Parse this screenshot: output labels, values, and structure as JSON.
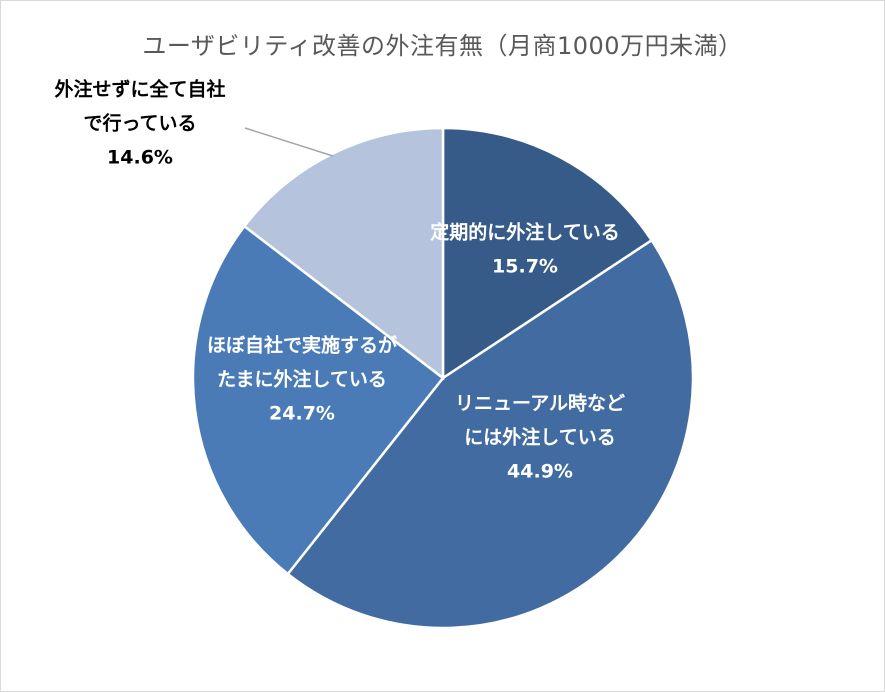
{
  "chart_data": {
    "type": "pie",
    "title": "ユーザビリティ改善の外注有無（月商1000万円未満）",
    "slices": [
      {
        "lines": [
          "定期的に外注している"
        ],
        "pct_label": "15.7%",
        "value": 15.7,
        "color": "#375b88",
        "label_color": "#ffffff"
      },
      {
        "lines": [
          "リニューアル時など",
          "には外注している"
        ],
        "pct_label": "44.9%",
        "value": 44.9,
        "color": "#426ca1",
        "label_color": "#ffffff"
      },
      {
        "lines": [
          "ほぼ自社で実施するが",
          "たまに外注している"
        ],
        "pct_label": "24.7%",
        "value": 24.7,
        "color": "#4a7bb7",
        "label_color": "#ffffff"
      },
      {
        "lines": [
          "外注せずに全て自社",
          "で行っている"
        ],
        "pct_label": "14.6%",
        "value": 14.6,
        "color": "#b5c3dc",
        "label_color": "#000000"
      }
    ],
    "legend": "none"
  }
}
